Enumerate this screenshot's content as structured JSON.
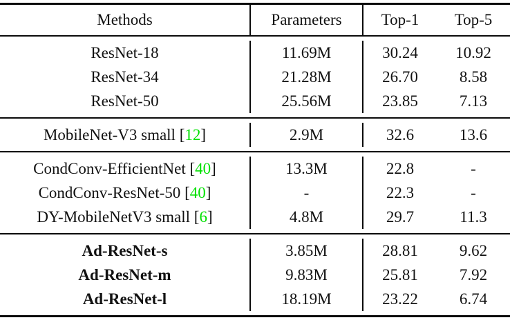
{
  "table": {
    "caption_hint": "results-table",
    "citation_color": "#00e000",
    "text_color": "#121212",
    "bracket_open": "[",
    "bracket_close": "]",
    "header": {
      "methods": "Methods",
      "parameters": "Parameters",
      "top1": "Top-1",
      "top5": "Top-5"
    },
    "sections": [
      {
        "rows": [
          {
            "method": "ResNet-18",
            "params": "11.69M",
            "top1": "30.24",
            "top5": "10.92"
          },
          {
            "method": "ResNet-34",
            "params": "21.28M",
            "top1": "26.70",
            "top5": "8.58"
          },
          {
            "method": "ResNet-50",
            "params": "25.56M",
            "top1": "23.85",
            "top5": "7.13"
          }
        ]
      },
      {
        "rows": [
          {
            "method": "MobileNet-V3 small",
            "cite": "12",
            "params": "2.9M",
            "top1": "32.6",
            "top5": "13.6"
          }
        ]
      },
      {
        "rows": [
          {
            "method": "CondConv-EfficientNet",
            "cite": "40",
            "params": "13.3M",
            "top1": "22.8",
            "top5": "-"
          },
          {
            "method": "CondConv-ResNet-50",
            "cite": "40",
            "params": "-",
            "top1": "22.3",
            "top5": "-"
          },
          {
            "method": "DY-MobileNetV3 small",
            "cite": "6",
            "params": "4.8M",
            "top1": "29.7",
            "top5": "11.3"
          }
        ]
      },
      {
        "bold": true,
        "rows": [
          {
            "method": "Ad-ResNet-s",
            "params": "3.85M",
            "top1": "28.81",
            "top5": "9.62"
          },
          {
            "method": "Ad-ResNet-m",
            "params": "9.83M",
            "top1": "25.81",
            "top5": "7.92"
          },
          {
            "method": "Ad-ResNet-l",
            "params": "18.19M",
            "top1": "23.22",
            "top5": "6.74"
          }
        ]
      }
    ]
  }
}
